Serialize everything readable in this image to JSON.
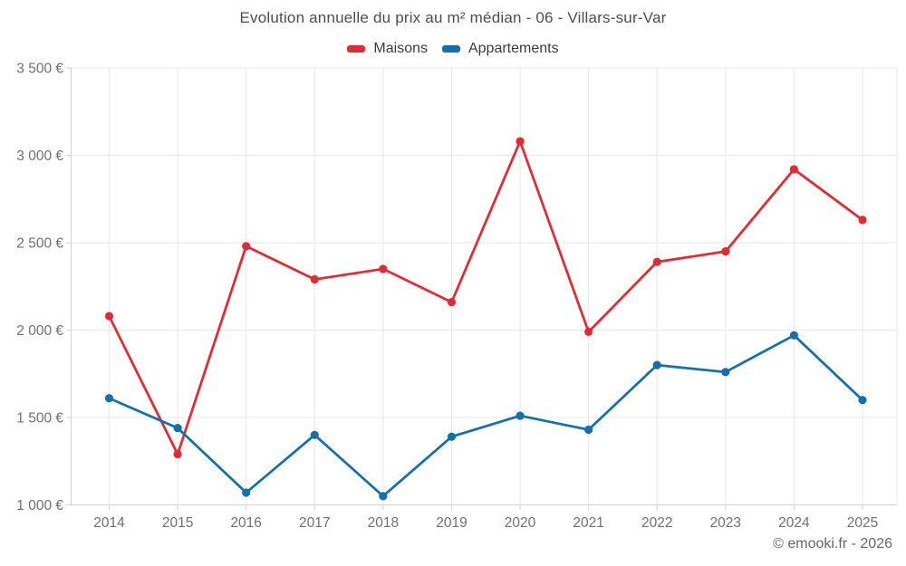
{
  "title": "Evolution annuelle du prix au m² médian - 06 - Villars-sur-Var",
  "footer": "© emooki.fr - 2026",
  "colors": {
    "maisons": "#e12b32",
    "appartements": "#1470ad",
    "grid": "#e8e8e8",
    "axis": "#d2d2d2",
    "tick_label": "#707070",
    "title_text": "#4d4d4d",
    "legend_text": "#3c3c3c",
    "footer_text": "#666666",
    "background": "#ffffff"
  },
  "chart_data": {
    "type": "line",
    "title": "Evolution annuelle du prix au m² médian - 06 - Villars-sur-Var",
    "categories": [
      "2014",
      "2015",
      "2016",
      "2017",
      "2018",
      "2019",
      "2020",
      "2021",
      "2022",
      "2023",
      "2024",
      "2025"
    ],
    "series": [
      {
        "name": "Maisons",
        "color": "#e12b32",
        "values": [
          2080,
          1290,
          2480,
          2290,
          2350,
          2160,
          3080,
          1990,
          2390,
          2450,
          2920,
          2630
        ]
      },
      {
        "name": "Appartements",
        "color": "#1470ad",
        "values": [
          1610,
          1440,
          1070,
          1400,
          1050,
          1390,
          1510,
          1430,
          1800,
          1760,
          1970,
          1600
        ]
      }
    ],
    "xlabel": "",
    "ylabel": "",
    "ylim": [
      1000,
      3500
    ],
    "yticks": [
      1000,
      1500,
      2000,
      2500,
      3000,
      3500
    ],
    "ytick_labels": [
      "1 000 €",
      "1 500 €",
      "2 000 €",
      "2 500 €",
      "3 000 €",
      "3 500 €"
    ],
    "grid": true,
    "legend_position": "top",
    "marker": "circle"
  }
}
